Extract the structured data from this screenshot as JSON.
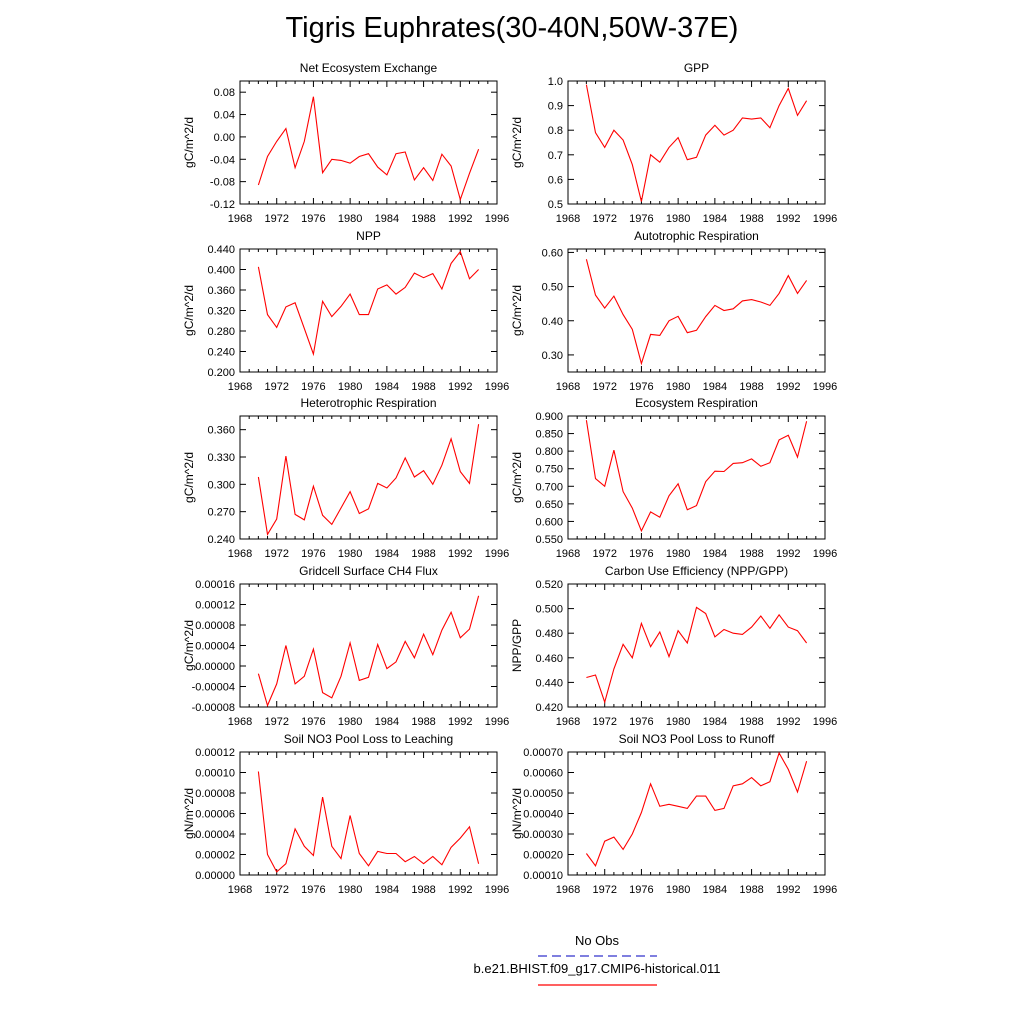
{
  "figure": {
    "title": "Tigris Euphrates(30-40N,50W-37E)",
    "line_color": "#ff0000",
    "obs_color": "#3333cc"
  },
  "legend": {
    "obs_label": "No Obs",
    "model_label": "b.e21.BHIST.f09_g17.CMIP6-historical.011"
  },
  "chart_data": [
    {
      "type": "line",
      "title": "Net Ecosystem Exchange",
      "ylabel": "gC/m^2/d",
      "xlim": [
        1968,
        1996
      ],
      "xticks": [
        "1968",
        "1972",
        "1976",
        "1980",
        "1984",
        "1988",
        "1992",
        "1996"
      ],
      "ylim": [
        -0.12,
        0.1
      ],
      "yticks": [
        "-0.12",
        "-0.08",
        "-0.04",
        "0.00",
        "0.04",
        "0.08"
      ],
      "x": [
        1970,
        1971,
        1972,
        1973,
        1974,
        1975,
        1976,
        1977,
        1978,
        1979,
        1980,
        1981,
        1982,
        1983,
        1984,
        1985,
        1986,
        1987,
        1988,
        1989,
        1990,
        1991,
        1992,
        1993,
        1994
      ],
      "series": [
        {
          "values": [
            -0.086,
            -0.035,
            -0.008,
            0.015,
            -0.055,
            -0.008,
            0.072,
            -0.064,
            -0.04,
            -0.042,
            -0.047,
            -0.035,
            -0.03,
            -0.054,
            -0.068,
            -0.03,
            -0.027,
            -0.077,
            -0.055,
            -0.078,
            -0.031,
            -0.052,
            -0.112,
            -0.065,
            -0.022
          ]
        }
      ]
    },
    {
      "type": "line",
      "title": "GPP",
      "ylabel": "gC/m^2/d",
      "xlim": [
        1968,
        1996
      ],
      "xticks": [
        "1968",
        "1972",
        "1976",
        "1980",
        "1984",
        "1988",
        "1992",
        "1996"
      ],
      "ylim": [
        0.5,
        1.0
      ],
      "yticks": [
        "0.5",
        "0.6",
        "0.7",
        "0.8",
        "0.9",
        "1.0"
      ],
      "x": [
        1970,
        1971,
        1972,
        1973,
        1974,
        1975,
        1976,
        1977,
        1978,
        1979,
        1980,
        1981,
        1982,
        1983,
        1984,
        1985,
        1986,
        1987,
        1988,
        1989,
        1990,
        1991,
        1992,
        1993,
        1994
      ],
      "series": [
        {
          "values": [
            0.985,
            0.79,
            0.73,
            0.8,
            0.76,
            0.66,
            0.51,
            0.7,
            0.67,
            0.73,
            0.77,
            0.68,
            0.69,
            0.78,
            0.82,
            0.78,
            0.8,
            0.85,
            0.845,
            0.85,
            0.81,
            0.9,
            0.97,
            0.86,
            0.92
          ]
        }
      ]
    },
    {
      "type": "line",
      "title": "NPP",
      "ylabel": "gC/m^2/d",
      "xlim": [
        1968,
        1996
      ],
      "xticks": [
        "1968",
        "1972",
        "1976",
        "1980",
        "1984",
        "1988",
        "1992",
        "1996"
      ],
      "ylim": [
        0.2,
        0.44
      ],
      "yticks": [
        "0.200",
        "0.240",
        "0.280",
        "0.320",
        "0.360",
        "0.400",
        "0.440"
      ],
      "x": [
        1970,
        1971,
        1972,
        1973,
        1974,
        1975,
        1976,
        1977,
        1978,
        1979,
        1980,
        1981,
        1982,
        1983,
        1984,
        1985,
        1986,
        1987,
        1988,
        1989,
        1990,
        1991,
        1992,
        1993,
        1994
      ],
      "series": [
        {
          "values": [
            0.405,
            0.312,
            0.287,
            0.327,
            0.335,
            0.285,
            0.235,
            0.338,
            0.308,
            0.328,
            0.352,
            0.312,
            0.312,
            0.362,
            0.37,
            0.352,
            0.365,
            0.393,
            0.384,
            0.392,
            0.362,
            0.412,
            0.435,
            0.382,
            0.4
          ]
        }
      ]
    },
    {
      "type": "line",
      "title": "Autotrophic Respiration",
      "ylabel": "gC/m^2/d",
      "xlim": [
        1968,
        1996
      ],
      "xticks": [
        "1968",
        "1972",
        "1976",
        "1980",
        "1984",
        "1988",
        "1992",
        "1996"
      ],
      "ylim": [
        0.25,
        0.61
      ],
      "yticks": [
        "0.30",
        "0.40",
        "0.50",
        "0.60"
      ],
      "x": [
        1970,
        1971,
        1972,
        1973,
        1974,
        1975,
        1976,
        1977,
        1978,
        1979,
        1980,
        1981,
        1982,
        1983,
        1984,
        1985,
        1986,
        1987,
        1988,
        1989,
        1990,
        1991,
        1992,
        1993,
        1994
      ],
      "series": [
        {
          "values": [
            0.58,
            0.475,
            0.437,
            0.472,
            0.418,
            0.375,
            0.275,
            0.36,
            0.357,
            0.4,
            0.413,
            0.365,
            0.372,
            0.412,
            0.445,
            0.43,
            0.435,
            0.458,
            0.462,
            0.455,
            0.445,
            0.48,
            0.532,
            0.48,
            0.518
          ]
        }
      ]
    },
    {
      "type": "line",
      "title": "Heterotrophic Respiration",
      "ylabel": "gC/m^2/d",
      "xlim": [
        1968,
        1996
      ],
      "xticks": [
        "1968",
        "1972",
        "1976",
        "1980",
        "1984",
        "1988",
        "1992",
        "1996"
      ],
      "ylim": [
        0.24,
        0.375
      ],
      "yticks": [
        "0.240",
        "0.270",
        "0.300",
        "0.330",
        "0.360"
      ],
      "x": [
        1970,
        1971,
        1972,
        1973,
        1974,
        1975,
        1976,
        1977,
        1978,
        1979,
        1980,
        1981,
        1982,
        1983,
        1984,
        1985,
        1986,
        1987,
        1988,
        1989,
        1990,
        1991,
        1992,
        1993,
        1994
      ],
      "series": [
        {
          "values": [
            0.308,
            0.245,
            0.262,
            0.331,
            0.267,
            0.261,
            0.298,
            0.266,
            0.256,
            0.274,
            0.292,
            0.268,
            0.273,
            0.301,
            0.296,
            0.307,
            0.329,
            0.308,
            0.315,
            0.3,
            0.321,
            0.35,
            0.314,
            0.301,
            0.366
          ]
        }
      ]
    },
    {
      "type": "line",
      "title": "Ecosystem Respiration",
      "ylabel": "gC/m^2/d",
      "xlim": [
        1968,
        1996
      ],
      "xticks": [
        "1968",
        "1972",
        "1976",
        "1980",
        "1984",
        "1988",
        "1992",
        "1996"
      ],
      "ylim": [
        0.55,
        0.9
      ],
      "yticks": [
        "0.550",
        "0.600",
        "0.650",
        "0.700",
        "0.750",
        "0.800",
        "0.850",
        "0.900"
      ],
      "x": [
        1970,
        1971,
        1972,
        1973,
        1974,
        1975,
        1976,
        1977,
        1978,
        1979,
        1980,
        1981,
        1982,
        1983,
        1984,
        1985,
        1986,
        1987,
        1988,
        1989,
        1990,
        1991,
        1992,
        1993,
        1994
      ],
      "series": [
        {
          "values": [
            0.888,
            0.722,
            0.7,
            0.803,
            0.685,
            0.638,
            0.573,
            0.627,
            0.612,
            0.673,
            0.707,
            0.633,
            0.645,
            0.713,
            0.743,
            0.742,
            0.765,
            0.767,
            0.778,
            0.757,
            0.767,
            0.832,
            0.845,
            0.783,
            0.885
          ]
        }
      ]
    },
    {
      "type": "line",
      "title": "Gridcell Surface CH4 Flux",
      "ylabel": "gC/m^2/d",
      "xlim": [
        1968,
        1996
      ],
      "xticks": [
        "1968",
        "1972",
        "1976",
        "1980",
        "1984",
        "1988",
        "1992",
        "1996"
      ],
      "ylim": [
        -8e-05,
        0.00016
      ],
      "yticks": [
        "-0.00008",
        "-0.00004",
        "0.00000",
        "0.00004",
        "0.00008",
        "0.00012",
        "0.00016"
      ],
      "x": [
        1970,
        1971,
        1972,
        1973,
        1974,
        1975,
        1976,
        1977,
        1978,
        1979,
        1980,
        1981,
        1982,
        1983,
        1984,
        1985,
        1986,
        1987,
        1988,
        1989,
        1990,
        1991,
        1992,
        1993,
        1994
      ],
      "series": [
        {
          "values": [
            -1.5e-05,
            -7.7e-05,
            -3.5e-05,
            4e-05,
            -3.5e-05,
            -2e-05,
            3.3e-05,
            -5.2e-05,
            -6.2e-05,
            -2e-05,
            4.5e-05,
            -2.8e-05,
            -2.2e-05,
            4.2e-05,
            -5e-06,
            8e-06,
            4.8e-05,
            1.6e-05,
            6.2e-05,
            2.2e-05,
            7e-05,
            0.000105,
            5.5e-05,
            7.2e-05,
            0.000137
          ]
        }
      ]
    },
    {
      "type": "line",
      "title": "Carbon Use Efficiency (NPP/GPP)",
      "ylabel": "NPP/GPP",
      "xlim": [
        1968,
        1996
      ],
      "xticks": [
        "1968",
        "1972",
        "1976",
        "1980",
        "1984",
        "1988",
        "1992",
        "1996"
      ],
      "ylim": [
        0.42,
        0.52
      ],
      "yticks": [
        "0.420",
        "0.440",
        "0.460",
        "0.480",
        "0.500",
        "0.520"
      ],
      "x": [
        1970,
        1971,
        1972,
        1973,
        1974,
        1975,
        1976,
        1977,
        1978,
        1979,
        1980,
        1981,
        1982,
        1983,
        1984,
        1985,
        1986,
        1987,
        1988,
        1989,
        1990,
        1991,
        1992,
        1993,
        1994
      ],
      "series": [
        {
          "values": [
            0.444,
            0.446,
            0.424,
            0.451,
            0.471,
            0.46,
            0.488,
            0.469,
            0.481,
            0.461,
            0.482,
            0.472,
            0.501,
            0.496,
            0.477,
            0.483,
            0.48,
            0.479,
            0.485,
            0.494,
            0.484,
            0.495,
            0.485,
            0.482,
            0.472
          ]
        }
      ]
    },
    {
      "type": "line",
      "title": "Soil NO3 Pool Loss to Leaching",
      "ylabel": "gN/m^2/d",
      "xlim": [
        1968,
        1996
      ],
      "xticks": [
        "1968",
        "1972",
        "1976",
        "1980",
        "1984",
        "1988",
        "1992",
        "1996"
      ],
      "ylim": [
        0,
        0.00012
      ],
      "yticks": [
        "0.00000",
        "0.00002",
        "0.00004",
        "0.00006",
        "0.00008",
        "0.00010",
        "0.00012"
      ],
      "x": [
        1970,
        1971,
        1972,
        1973,
        1974,
        1975,
        1976,
        1977,
        1978,
        1979,
        1980,
        1981,
        1982,
        1983,
        1984,
        1985,
        1986,
        1987,
        1988,
        1989,
        1990,
        1991,
        1992,
        1993,
        1994
      ],
      "series": [
        {
          "values": [
            0.000101,
            2e-05,
            3e-06,
            1.1e-05,
            4.5e-05,
            2.8e-05,
            1.9e-05,
            7.6e-05,
            2.8e-05,
            1.6e-05,
            5.8e-05,
            2.1e-05,
            9e-06,
            2.3e-05,
            2.1e-05,
            2.1e-05,
            1.3e-05,
            1.8e-05,
            1.1e-05,
            1.8e-05,
            1e-05,
            2.7e-05,
            3.6e-05,
            4.7e-05,
            1.1e-05
          ]
        }
      ]
    },
    {
      "type": "line",
      "title": "Soil NO3 Pool Loss to Runoff",
      "ylabel": "gN/m^2/d",
      "xlim": [
        1968,
        1996
      ],
      "xticks": [
        "1968",
        "1972",
        "1976",
        "1980",
        "1984",
        "1988",
        "1992",
        "1996"
      ],
      "ylim": [
        0.0001,
        0.0007
      ],
      "yticks": [
        "0.00010",
        "0.00020",
        "0.00030",
        "0.00040",
        "0.00050",
        "0.00060",
        "0.00070"
      ],
      "x": [
        1970,
        1971,
        1972,
        1973,
        1974,
        1975,
        1976,
        1977,
        1978,
        1979,
        1980,
        1981,
        1982,
        1983,
        1984,
        1985,
        1986,
        1987,
        1988,
        1989,
        1990,
        1991,
        1992,
        1993,
        1994
      ],
      "series": [
        {
          "values": [
            0.000205,
            0.000145,
            0.000265,
            0.000285,
            0.000225,
            0.0003,
            0.000405,
            0.000545,
            0.000435,
            0.000445,
            0.000435,
            0.000425,
            0.000485,
            0.000485,
            0.000415,
            0.000425,
            0.000535,
            0.000545,
            0.000575,
            0.000535,
            0.000555,
            0.000695,
            0.000615,
            0.000505,
            0.000655
          ]
        }
      ]
    }
  ]
}
